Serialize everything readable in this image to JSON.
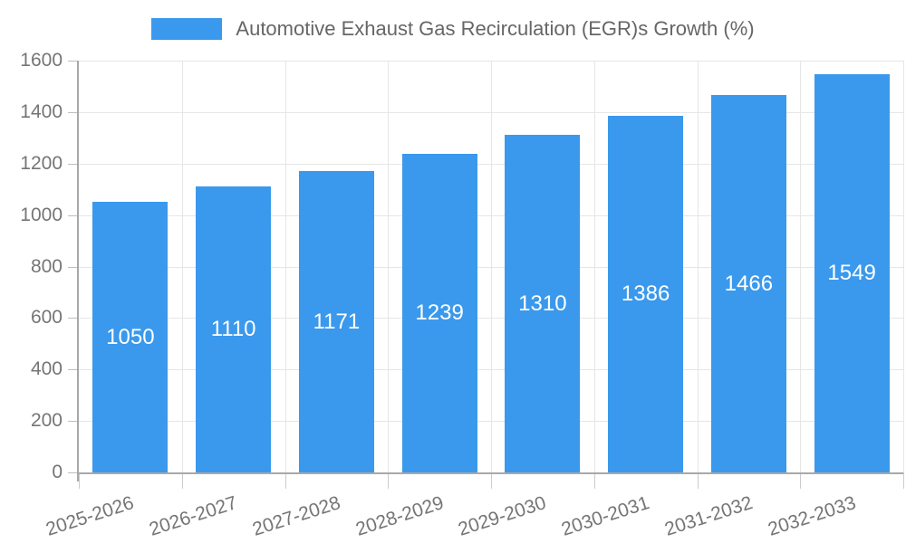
{
  "chart_data": {
    "type": "bar",
    "title": "Automotive Exhaust Gas Recirculation (EGR)s Growth (%)",
    "series_name": "Automotive Exhaust Gas Recirculation (EGR)s Growth (%)",
    "categories": [
      "2025-2026",
      "2026-2027",
      "2027-2028",
      "2028-2029",
      "2029-2030",
      "2030-2031",
      "2031-2032",
      "2032-2033"
    ],
    "values": [
      1050,
      1110,
      1171,
      1239,
      1310,
      1386,
      1466,
      1549
    ],
    "xlabel": "",
    "ylabel": "",
    "ylim": [
      0,
      1600
    ],
    "ytick_step": 200,
    "y_tick_labels": [
      "0",
      "200",
      "400",
      "600",
      "800",
      "1000",
      "1200",
      "1400",
      "1600"
    ],
    "grid": true,
    "legend_position": "top-center",
    "value_label_position": "inside-center",
    "x_label_rotation_deg": -18,
    "colors": {
      "bar": "#3a99ec",
      "value_label": "#ffffff",
      "axis_label": "#757575",
      "legend_text": "#666666",
      "gridline": "#e6e6e6",
      "axis_line": "#a8a8a8",
      "background": "#ffffff"
    }
  }
}
